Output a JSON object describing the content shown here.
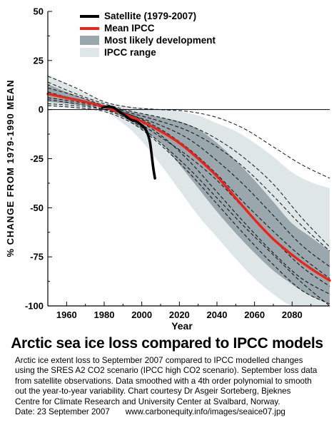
{
  "caption": {
    "headline": "Arctic sea ice loss compared to IPCC models",
    "lines": [
      "Arctic ice extent loss to September 2007 compared to IPCC modelled changes",
      "using the SRES A2 CO2 scenario (IPCC high CO2 scenario). September loss data",
      "from satellite observations. Data smoothed with a 4th order polynomial to smooth",
      "out the year-to-year variability. Chart courtesy Dr Asgeir Sorteberg, Bjeknes",
      "Centre for Climate Research and University Center at Svalbard, Norway."
    ],
    "date": "Date: 23 September 2007",
    "url": "www.carbonequity.info/images/seaice07.jpg"
  },
  "chart_data": {
    "type": "line",
    "xlabel": "Year",
    "ylabel": "% CHANGE FROM 1979-1990 MEAN",
    "xlim": [
      1950,
      2100
    ],
    "ylim": [
      -100,
      50
    ],
    "xticks": [
      1960,
      1980,
      2000,
      2020,
      2040,
      2060,
      2080
    ],
    "yticks": [
      50,
      25,
      0,
      -25,
      -50,
      -75,
      -100
    ],
    "grid": false,
    "legend_position": "top-left",
    "colors": {
      "satellite": "#000000",
      "mean": "#e8251b",
      "likely_band": "#9aa8ae",
      "range_band": "#dfe6e7",
      "models": "#000000"
    },
    "legend": [
      "Satellite (1979-2007)",
      "Mean IPCC",
      "Most likely development",
      "IPCC range"
    ],
    "series": [
      {
        "name": "Satellite (1979-2007)",
        "x": [
          1979,
          1982,
          1985,
          1988,
          1991,
          1994,
          1997,
          2000,
          2002,
          2004,
          2005,
          2006,
          2007
        ],
        "y": [
          1,
          1.5,
          1,
          -1,
          -3,
          -5,
          -6,
          -8,
          -10,
          -15,
          -21,
          -29,
          -35
        ]
      },
      {
        "name": "Mean IPCC",
        "x": [
          1950,
          1960,
          1970,
          1980,
          1990,
          2000,
          2010,
          2020,
          2030,
          2040,
          2050,
          2060,
          2070,
          2080,
          2090,
          2100
        ],
        "y": [
          8,
          6,
          4,
          1.5,
          -2,
          -6,
          -11,
          -17,
          -25,
          -34,
          -45,
          -56,
          -66,
          -74,
          -81,
          -87
        ]
      },
      {
        "name": "Most likely development",
        "x": [
          1950,
          1960,
          1970,
          1980,
          1990,
          2000,
          2010,
          2020,
          2030,
          2040,
          2050,
          2060,
          2070,
          2080,
          2090,
          2100
        ],
        "upper": [
          13,
          9,
          5.5,
          2.5,
          0,
          -2,
          -4,
          -6,
          -10,
          -17,
          -26,
          -36,
          -47,
          -58,
          -65,
          -72
        ],
        "lower": [
          4,
          3,
          2,
          0.5,
          -4,
          -10,
          -17,
          -28,
          -40,
          -52,
          -63,
          -73,
          -82,
          -89,
          -95,
          -99
        ]
      },
      {
        "name": "IPCC range",
        "x": [
          1950,
          1960,
          1970,
          1980,
          1990,
          2000,
          2010,
          2020,
          2030,
          2040,
          2050,
          2060,
          2070,
          2080,
          2090,
          2100
        ],
        "upper": [
          18,
          13,
          8,
          4,
          2,
          1,
          0,
          -1,
          -3,
          -7,
          -11,
          -17,
          -24,
          -32,
          -37,
          -40
        ],
        "lower": [
          2,
          1,
          0,
          -1,
          -7,
          -16,
          -28,
          -41,
          -54,
          -65,
          -76,
          -86,
          -94,
          -100,
          -100,
          -100
        ]
      }
    ],
    "model_runs": [
      {
        "x": [
          1950,
          1965,
          1980,
          1995,
          2010,
          2025,
          2040,
          2055,
          2070,
          2085,
          2100
        ],
        "y": [
          17,
          11,
          4,
          1,
          0,
          -1,
          -4,
          -10,
          -19,
          -28,
          -35
        ]
      },
      {
        "x": [
          1950,
          1965,
          1980,
          1995,
          2010,
          2025,
          2040,
          2055,
          2070,
          2085,
          2100
        ],
        "y": [
          14,
          8,
          3,
          -1,
          -4,
          -8,
          -15,
          -25,
          -38,
          -55,
          -70
        ]
      },
      {
        "x": [
          1950,
          1965,
          1980,
          1995,
          2010,
          2025,
          2040,
          2055,
          2070,
          2085,
          2100
        ],
        "y": [
          11,
          7,
          2,
          -3,
          -8,
          -15,
          -26,
          -39,
          -54,
          -69,
          -80
        ]
      },
      {
        "x": [
          1950,
          1965,
          1980,
          1995,
          2010,
          2025,
          2040,
          2055,
          2070,
          2085,
          2100
        ],
        "y": [
          6,
          4,
          1,
          -3,
          -10,
          -20,
          -33,
          -48,
          -62,
          -75,
          -86
        ]
      },
      {
        "x": [
          1950,
          1965,
          1980,
          1995,
          2010,
          2025,
          2040,
          2055,
          2070,
          2085,
          2100
        ],
        "y": [
          3,
          2,
          0,
          -4,
          -13,
          -26,
          -42,
          -58,
          -73,
          -86,
          -94
        ]
      },
      {
        "x": [
          1950,
          1965,
          1980,
          1995,
          2010,
          2025,
          2040,
          2055,
          2070,
          2085,
          2100
        ],
        "y": [
          2,
          1,
          -1,
          -7,
          -18,
          -32,
          -48,
          -64,
          -79,
          -92,
          -99
        ]
      },
      {
        "x": [
          1950,
          1965,
          1980,
          1995,
          2010,
          2025,
          2040,
          2055,
          2070,
          2085,
          2100
        ],
        "y": [
          9,
          5,
          1,
          -5,
          -14,
          -24,
          -36,
          -51,
          -66,
          -80,
          -90
        ]
      },
      {
        "x": [
          1950,
          1965,
          1980,
          1995,
          2010,
          2025,
          2040,
          2055,
          2070,
          2085,
          2100
        ],
        "y": [
          5,
          3,
          0,
          -6,
          -17,
          -30,
          -45,
          -60,
          -74,
          -88,
          -100
        ]
      },
      {
        "x": [
          1950,
          1965,
          1980,
          1995,
          2010,
          2025,
          2040,
          2055,
          2070,
          2085,
          2100
        ],
        "y": [
          8,
          5,
          2,
          -2,
          -6,
          -11,
          -19,
          -30,
          -44,
          -59,
          -72
        ]
      }
    ]
  }
}
